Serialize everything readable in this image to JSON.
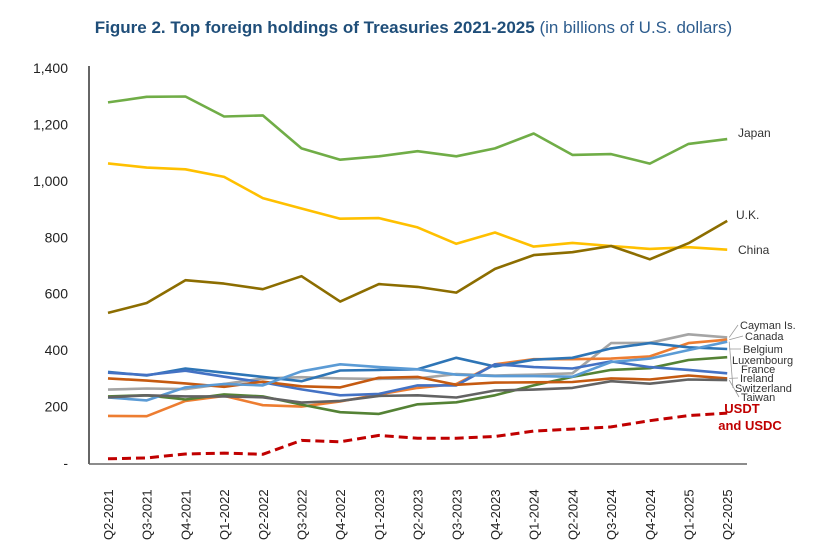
{
  "chart_data": {
    "type": "line",
    "title": "Figure 2. Top foreign holdings of Treasuries 2021-2025",
    "subtitle": "(in billions of U.S. dollars)",
    "xlabel": "",
    "ylabel": "",
    "ylim": [
      0,
      1400
    ],
    "yticks": [
      0,
      200,
      400,
      600,
      800,
      1000,
      1200,
      1400
    ],
    "ytick_labels": [
      "-",
      "200",
      "400",
      "600",
      "800",
      "1,000",
      "1,200",
      "1,400"
    ],
    "grid": false,
    "legend": "inline-right",
    "categories": [
      "Q2-2021",
      "Q3-2021",
      "Q4-2021",
      "Q1-2022",
      "Q2-2022",
      "Q3-2022",
      "Q4-2022",
      "Q1-2023",
      "Q2-2023",
      "Q3-2023",
      "Q4-2023",
      "Q1-2024",
      "Q2-2024",
      "Q3-2024",
      "Q4-2024",
      "Q1-2025",
      "Q2-2025"
    ],
    "series": [
      {
        "name": "Japan",
        "color": "#70ad47",
        "dashed": false,
        "values": [
          1278,
          1298,
          1299,
          1228,
          1232,
          1115,
          1075,
          1087,
          1105,
          1087,
          1115,
          1168,
          1092,
          1095,
          1061,
          1131,
          1148
        ]
      },
      {
        "name": "China",
        "color": "#ffc000",
        "dashed": false,
        "values": [
          1062,
          1047,
          1041,
          1014,
          939,
          902,
          866,
          868,
          835,
          777,
          817,
          767,
          780,
          769,
          759,
          765,
          756
        ]
      },
      {
        "name": "U.K.",
        "color": "#8c6d00",
        "dashed": false,
        "values": [
          532,
          567,
          648,
          636,
          616,
          662,
          572,
          634,
          624,
          604,
          688,
          737,
          747,
          769,
          722,
          779,
          858
        ]
      },
      {
        "name": "Cayman Is.",
        "color": "#a5a5a5",
        "dashed": false,
        "values": [
          260,
          264,
          262,
          280,
          300,
          304,
          300,
          298,
          300,
          315,
          310,
          313,
          318,
          425,
          426,
          456,
          445
        ]
      },
      {
        "name": "Canada",
        "color": "#ed7d31",
        "dashed": false,
        "values": [
          167,
          166,
          220,
          238,
          205,
          200,
          218,
          243,
          266,
          280,
          350,
          368,
          368,
          370,
          378,
          425,
          437
        ]
      },
      {
        "name": "Belgium",
        "color": "#2e75b6",
        "dashed": false,
        "values": [
          323,
          310,
          335,
          320,
          305,
          290,
          328,
          330,
          332,
          373,
          342,
          366,
          373,
          406,
          425,
          410,
          404
        ]
      },
      {
        "name": "Luxembourg",
        "color": "#548235",
        "dashed": false,
        "values": [
          236,
          240,
          225,
          243,
          236,
          207,
          180,
          174,
          208,
          215,
          240,
          275,
          305,
          330,
          336,
          365,
          375
        ]
      },
      {
        "name": "France",
        "color": "#4472c4",
        "dashed": false,
        "values": [
          320,
          312,
          327,
          306,
          286,
          261,
          240,
          245,
          275,
          275,
          350,
          340,
          335,
          360,
          340,
          330,
          318
        ]
      },
      {
        "name": "Ireland",
        "color": "#c55a11",
        "dashed": false,
        "values": [
          300,
          292,
          282,
          270,
          288,
          272,
          268,
          302,
          305,
          277,
          285,
          286,
          287,
          300,
          296,
          310,
          300
        ]
      },
      {
        "name": "Switzerland",
        "color": "#5b9bd5",
        "dashed": false,
        "values": [
          232,
          222,
          268,
          280,
          275,
          325,
          350,
          340,
          332,
          313,
          308,
          308,
          306,
          358,
          370,
          400,
          430
        ]
      },
      {
        "name": "Taiwan",
        "color": "#636363",
        "dashed": false,
        "values": [
          233,
          240,
          236,
          236,
          233,
          214,
          220,
          238,
          240,
          232,
          257,
          260,
          266,
          290,
          281,
          296,
          294
        ]
      },
      {
        "name": "USDT and USDC",
        "color": "#c00000",
        "dashed": true,
        "values": [
          15,
          18,
          32,
          35,
          31,
          80,
          75,
          98,
          88,
          88,
          94,
          113,
          120,
          128,
          150,
          168,
          177
        ]
      }
    ]
  }
}
